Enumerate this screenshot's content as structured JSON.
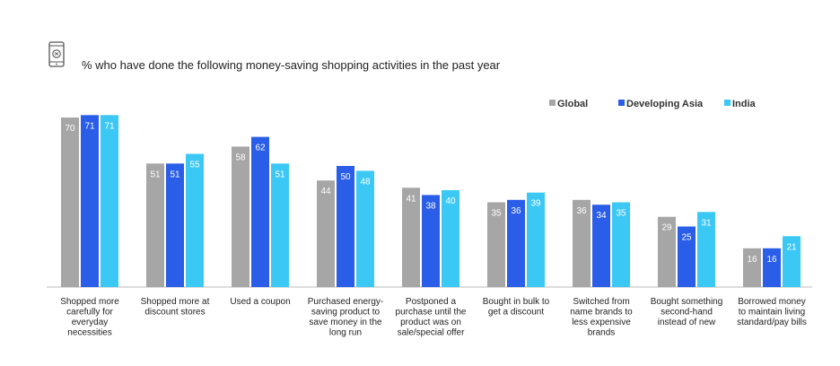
{
  "chart_data": {
    "type": "bar",
    "title": "% who have done the following money-saving shopping activities in the past year",
    "categories": [
      [
        "Shopped more",
        "carefully for",
        "everyday",
        "necessities"
      ],
      [
        "Shopped more at",
        "discount stores"
      ],
      [
        "Used a coupon"
      ],
      [
        "Purchased energy-",
        "saving product to",
        "save money in the",
        "long run"
      ],
      [
        "Postponed a",
        "purchase until the",
        "product was on",
        "sale/special offer"
      ],
      [
        "Bought in bulk to",
        "get a discount"
      ],
      [
        "Switched from",
        "name brands to",
        "less expensive",
        "brands"
      ],
      [
        "Bought something",
        "second-hand",
        "instead of new"
      ],
      [
        "Borrowed money",
        "to maintain living",
        "standard/pay bills"
      ]
    ],
    "series": [
      {
        "name": "Global",
        "color": "#a6a6a6",
        "values": [
          70,
          51,
          58,
          44,
          41,
          35,
          36,
          29,
          16
        ]
      },
      {
        "name": "Developing Asia",
        "color": "#2a5ee8",
        "values": [
          71,
          51,
          62,
          50,
          38,
          36,
          34,
          25,
          16
        ]
      },
      {
        "name": "India",
        "color": "#3cc8f5",
        "values": [
          71,
          55,
          51,
          48,
          40,
          39,
          35,
          31,
          21
        ]
      }
    ],
    "ylim": [
      0,
      75
    ],
    "legend_position": "top-right",
    "grid": false,
    "icon": "mobile-phone-icon"
  }
}
